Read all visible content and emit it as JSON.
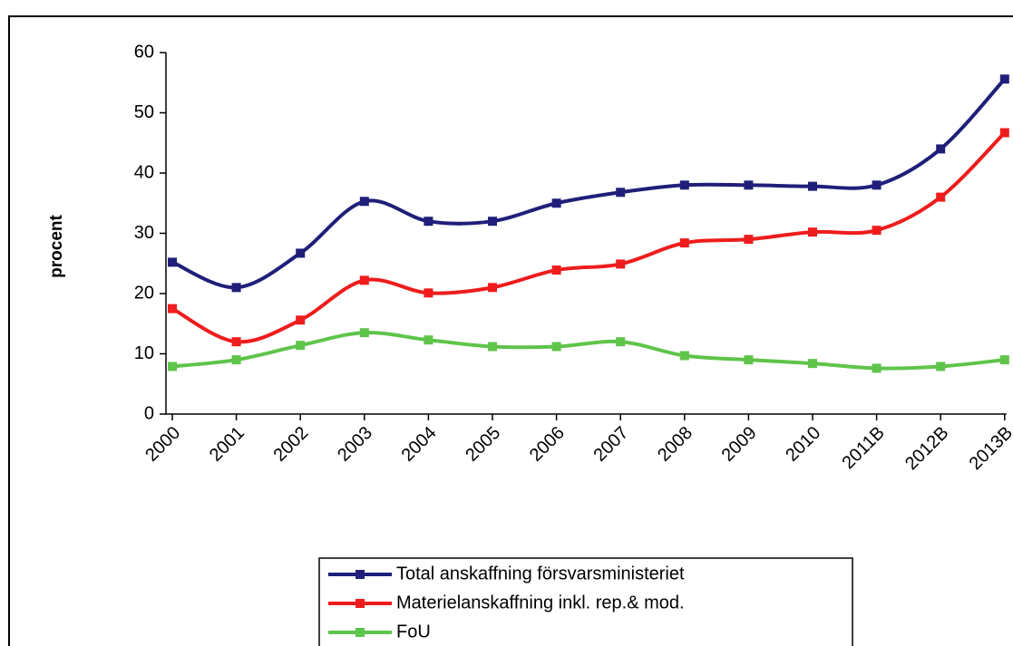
{
  "chart_data": {
    "type": "line",
    "y_label": "procent",
    "categories": [
      "2000",
      "2001",
      "2002",
      "2003",
      "2004",
      "2005",
      "2006",
      "2007",
      "2008",
      "2009",
      "2010",
      "2011B",
      "2012B",
      "2013B"
    ],
    "series": [
      {
        "name": "Total anskaffning försvarsministeriet",
        "color": "#1f1f7a",
        "values": [
          25.2,
          21,
          26.7,
          35.3,
          32,
          32,
          35,
          36.8,
          38,
          38,
          37.8,
          38,
          44,
          55.6
        ]
      },
      {
        "name": "Materielanskaffning inkl. rep.& mod.",
        "color": "#ee1c1c",
        "values": [
          17.5,
          12,
          15.6,
          22.2,
          20.1,
          21,
          23.9,
          24.9,
          28.4,
          29,
          30.2,
          30.5,
          36,
          46.7
        ]
      },
      {
        "name": "FoU",
        "color": "#5fc44a",
        "values": [
          7.9,
          9,
          11.4,
          13.5,
          12.3,
          11.2,
          11.2,
          12,
          9.7,
          9,
          8.4,
          7.6,
          7.9,
          9
        ]
      }
    ],
    "ylim": [
      0,
      60
    ],
    "yticks": [
      0,
      10,
      20,
      30,
      40,
      50,
      60
    ],
    "grid": false,
    "legend": "bottom"
  }
}
